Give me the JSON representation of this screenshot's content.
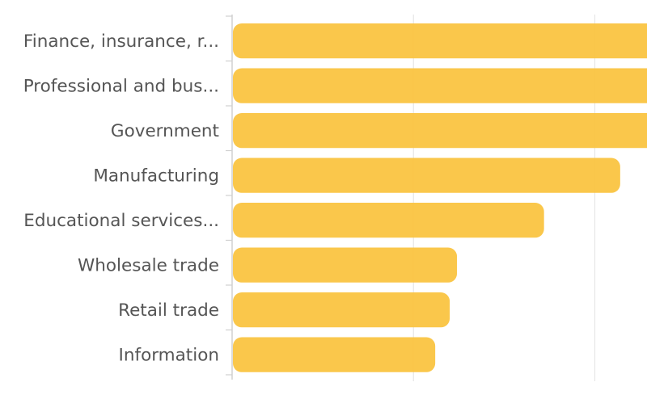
{
  "chart_data": {
    "type": "bar",
    "orientation": "horizontal",
    "categories": [
      "Finance, insurance, r...",
      "Professional and bus...",
      "Government",
      "Manufacturing",
      "Educational services...",
      "Wholesale trade",
      "Retail trade",
      "Information"
    ],
    "values": [
      2.64,
      2.59,
      2.42,
      2.14,
      1.72,
      1.24,
      1.2,
      1.12
    ],
    "xlim": [
      0,
      2.6
    ],
    "x_gridlines": [
      1,
      2
    ],
    "grid": true,
    "legend": "none",
    "bar_color": "#FAC441"
  }
}
